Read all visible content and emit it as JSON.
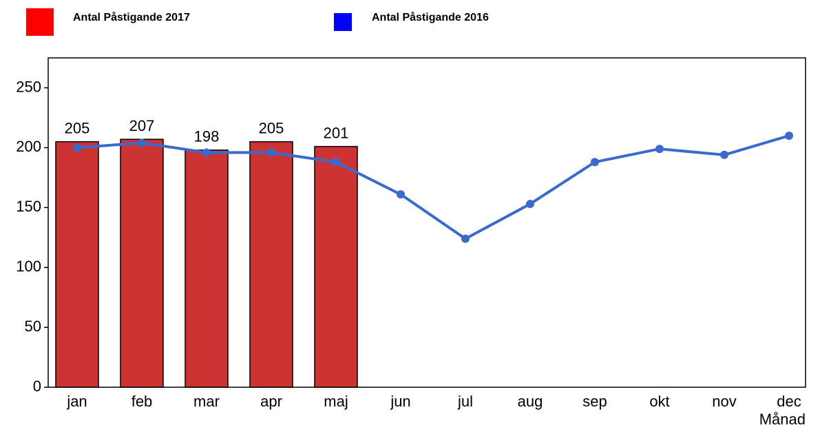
{
  "chart_data": {
    "type": "bar",
    "x_label": "Månad",
    "categories": [
      "jan",
      "feb",
      "mar",
      "apr",
      "maj",
      "jun",
      "jul",
      "aug",
      "sep",
      "okt",
      "nov",
      "dec"
    ],
    "series": [
      {
        "name": "Antal Påstigande 2017",
        "type": "bar",
        "color": "#cc3333",
        "legend_color": "#ff0000",
        "data_labels": true,
        "values": [
          205,
          207,
          198,
          205,
          201,
          null,
          null,
          null,
          null,
          null,
          null,
          null
        ]
      },
      {
        "name": "Antal Påstigande 2016",
        "type": "line",
        "color": "#3a6bcc",
        "legend_color": "#0000ff",
        "values": [
          200,
          204,
          196,
          196,
          188,
          161,
          124,
          153,
          188,
          199,
          194,
          210
        ]
      }
    ],
    "ylim": [
      0,
      275
    ],
    "yticks": [
      0,
      50,
      100,
      150,
      200,
      250
    ],
    "grid": false
  }
}
